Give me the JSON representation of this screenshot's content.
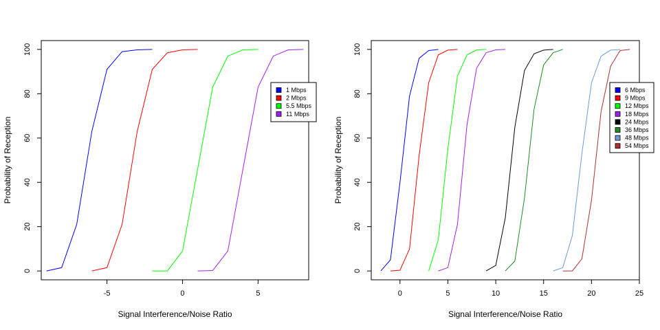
{
  "chart_data": [
    {
      "type": "line",
      "xlabel": "Signal Interference/Noise Ratio",
      "ylabel": "Probability of Reception",
      "xlim": [
        -9.35,
        8.35
      ],
      "ylim": [
        -4,
        104
      ],
      "xticks": [
        -5,
        0,
        5
      ],
      "yticks": [
        0,
        20,
        40,
        60,
        80,
        100
      ],
      "grid": false,
      "legend_position": "right",
      "series": [
        {
          "name": "1 Mbps",
          "color": "#0000ff",
          "x": [
            -9,
            -8,
            -7,
            -6,
            -5,
            -4,
            -3,
            -2
          ],
          "y": [
            0,
            1.5,
            21,
            63,
            91,
            99,
            99.8,
            100
          ]
        },
        {
          "name": "2 Mbps",
          "color": "#ff0000",
          "x": [
            -6,
            -5,
            -4,
            -3,
            -2,
            -1,
            0,
            1
          ],
          "y": [
            0,
            1.5,
            21,
            63,
            91,
            98.5,
            99.8,
            100
          ]
        },
        {
          "name": "5.5 Mbps",
          "color": "#00ff00",
          "x": [
            -2,
            -1,
            0,
            1,
            2,
            3,
            4,
            5
          ],
          "y": [
            0,
            0,
            9,
            46,
            83,
            97,
            99.8,
            100
          ]
        },
        {
          "name": "11 Mbps",
          "color": "#a020f0",
          "x": [
            1,
            2,
            3,
            4,
            5,
            6,
            7,
            8
          ],
          "y": [
            0,
            0.2,
            9,
            46,
            83,
            97,
            99.8,
            100
          ]
        }
      ]
    },
    {
      "type": "line",
      "xlabel": "Signal Interference/Noise Ratio",
      "ylabel": "Probability of Reception",
      "xlim": [
        -3,
        25
      ],
      "ylim": [
        -4,
        104
      ],
      "xticks": [
        0,
        5,
        10,
        15,
        20,
        25
      ],
      "yticks": [
        0,
        20,
        40,
        60,
        80,
        100
      ],
      "grid": false,
      "legend_position": "right",
      "series": [
        {
          "name": "6 Mbps",
          "color": "#0000ff",
          "x": [
            -2,
            -1,
            0,
            1,
            2,
            3,
            4
          ],
          "y": [
            0,
            5,
            40,
            79,
            96,
            99.5,
            100
          ]
        },
        {
          "name": "9 Mbps",
          "color": "#ff0000",
          "x": [
            -1,
            0,
            1,
            2,
            3,
            4,
            5,
            6
          ],
          "y": [
            0,
            0.3,
            10,
            52,
            85,
            97.5,
            99.7,
            100
          ]
        },
        {
          "name": "12 Mbps",
          "color": "#00ff00",
          "x": [
            3,
            4,
            5,
            6,
            7,
            8,
            9
          ],
          "y": [
            0,
            14,
            55,
            88,
            97.5,
            99.8,
            100
          ]
        },
        {
          "name": "18 Mbps",
          "color": "#a020f0",
          "x": [
            4,
            5,
            6,
            7,
            8,
            9,
            10,
            11
          ],
          "y": [
            0,
            1.5,
            21,
            66,
            91.5,
            98.5,
            99.8,
            100
          ]
        },
        {
          "name": "24 Mbps",
          "color": "#000000",
          "x": [
            9,
            10,
            11,
            12,
            13,
            14,
            15,
            16
          ],
          "y": [
            0,
            2.5,
            24,
            65,
            90.5,
            98,
            99.7,
            100
          ]
        },
        {
          "name": "36 Mbps",
          "color": "#228b22",
          "x": [
            11,
            12,
            13,
            14,
            15,
            16,
            17
          ],
          "y": [
            0,
            4.5,
            33,
            73,
            93,
            98.5,
            100
          ]
        },
        {
          "name": "48 Mbps",
          "color": "#6b9bd8",
          "x": [
            16,
            17,
            18,
            19,
            20,
            21,
            22,
            23
          ],
          "y": [
            0,
            1.5,
            16,
            53,
            85,
            97,
            99.7,
            100
          ]
        },
        {
          "name": "54 Mbps",
          "color": "#b03030",
          "x": [
            17,
            18,
            19,
            20,
            21,
            22,
            23,
            24
          ],
          "y": [
            0,
            0,
            5.5,
            32,
            72,
            92.5,
            99.5,
            100
          ]
        }
      ]
    }
  ]
}
